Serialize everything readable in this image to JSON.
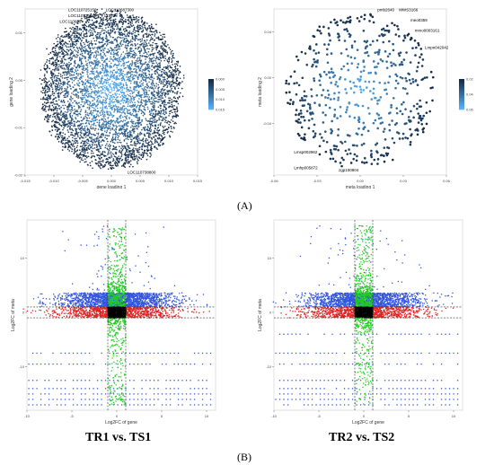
{
  "figure": {
    "label_a": "(A)",
    "label_b": "(B)",
    "subtitle_left": "TR1 vs. TS1",
    "subtitle_right": "TR2 vs. TS2"
  },
  "chart_data": [
    {
      "type": "scatter",
      "panel": "A-left",
      "xlabel": "gene loading 1",
      "ylabel": "gene loading 2",
      "xlim": [
        -0.015,
        0.015
      ],
      "ylim": [
        -0.02,
        0.015
      ],
      "xticks": [
        -0.015,
        -0.01,
        -0.005,
        0.0,
        0.005,
        0.01,
        0.015
      ],
      "xtick_labels": [
        "-0.015",
        "-0.010",
        "-0.005",
        "0.000",
        "0.005",
        "0.010",
        "0.015"
      ],
      "yticks": [
        -0.02,
        -0.01,
        0.0,
        0.01
      ],
      "ytick_labels": [
        "-0.02",
        "-0.01",
        "0.00",
        "0.01"
      ],
      "colorbar": {
        "ticks": [
          0.0,
          0.005,
          0.01,
          0.015
        ],
        "tick_labels": [
          "0.000",
          "0.005",
          "0.010",
          "0.015"
        ]
      },
      "annotations": [
        {
          "text": "LOC110725156",
          "x": -0.0075,
          "y": 0.0145
        },
        {
          "text": "LOC110687300",
          "x": -0.001,
          "y": 0.0145
        },
        {
          "text": "LOC110736962",
          "x": -0.0075,
          "y": 0.0133
        },
        {
          "text": "12120",
          "x": -0.0013,
          "y": 0.0133
        },
        {
          "text": "LOC110693",
          "x": -0.009,
          "y": 0.0121
        },
        {
          "text": "LOC110738800",
          "x": 0.0028,
          "y": -0.0197
        }
      ],
      "colors": {
        "dark": "#152a45",
        "light": "#56b1f7"
      }
    },
    {
      "type": "scatter",
      "panel": "A-right",
      "xlabel": "meta loading 1",
      "ylabel": "meta loading 2",
      "xlim": [
        -0.06,
        0.06
      ],
      "ylim": [
        -0.085,
        0.06
      ],
      "xticks": [
        -0.06,
        -0.03,
        0.0,
        0.03,
        0.06
      ],
      "xtick_labels": [
        "-0.06",
        "-0.03",
        "0.00",
        "0.03",
        "0.06"
      ],
      "yticks": [
        -0.04,
        0.0,
        0.04
      ],
      "ytick_labels": [
        "-0.04",
        "0.00",
        "0.04"
      ],
      "colorbar": {
        "ticks": [
          0.02,
          0.04,
          0.06
        ],
        "tick_labels": [
          "0.02",
          "0.04",
          "0.06"
        ]
      },
      "annotations": [
        {
          "text": "pmb2640",
          "x": 0.012,
          "y": 0.058
        },
        {
          "text": "MWS3166",
          "x": 0.027,
          "y": 0.058
        },
        {
          "text": "meo0359",
          "x": 0.035,
          "y": 0.049
        },
        {
          "text": "mmo0003161",
          "x": 0.038,
          "y": 0.04
        },
        {
          "text": "Lmpn042042",
          "x": 0.045,
          "y": 0.025
        },
        {
          "text": "Lmsp002962",
          "x": -0.046,
          "y": -0.066
        },
        {
          "text": "Lmhp005872",
          "x": -0.046,
          "y": -0.08
        },
        {
          "text": "zgp100904",
          "x": -0.015,
          "y": -0.082
        }
      ],
      "colors": {
        "dark": "#152a45",
        "light": "#56b1f7"
      }
    },
    {
      "type": "scatter",
      "panel": "B-left",
      "title": "TR1 vs. TS1",
      "xlabel": "Log2FC of gene",
      "ylabel": "Log2FC of meta",
      "xlim": [
        -10,
        11
      ],
      "ylim": [
        -18,
        17
      ],
      "xticks": [
        -10,
        -5,
        0,
        5,
        10
      ],
      "xtick_labels": [
        "-10",
        "-5",
        "0",
        "5",
        "10"
      ],
      "yticks": [
        -10,
        0,
        10
      ],
      "ytick_labels": [
        "-10",
        "0",
        "10"
      ],
      "vlines": [
        -1,
        1
      ],
      "hlines": [
        -1,
        1
      ],
      "series_colors": {
        "both_sig": "#000000",
        "gene_only": "#22cc22",
        "meta_only": "#3355dd",
        "red": "#dd2222"
      },
      "band_ys": [
        -7.5,
        -9.5,
        -12.5,
        -14,
        -15,
        -16,
        -17
      ]
    },
    {
      "type": "scatter",
      "panel": "B-right",
      "title": "TR2 vs. TS2",
      "xlabel": "Log2FC of gene",
      "ylabel": "Log2FC of meta",
      "xlim": [
        -10,
        11
      ],
      "ylim": [
        -18,
        17
      ],
      "xticks": [
        -10,
        -5,
        0,
        5,
        10
      ],
      "xtick_labels": [
        "-10",
        "-5",
        "0",
        "5",
        "10"
      ],
      "yticks": [
        -10,
        0,
        10
      ],
      "ytick_labels": [
        "-10",
        "0",
        "10"
      ],
      "vlines": [
        -1,
        1
      ],
      "hlines": [
        -1,
        1
      ],
      "series_colors": {
        "both_sig": "#000000",
        "gene_only": "#22cc22",
        "meta_only": "#3355dd",
        "red": "#dd2222"
      },
      "band_ys": [
        -4,
        -7.5,
        -9.5,
        -12.5,
        -14,
        -15,
        -16,
        -17
      ]
    }
  ]
}
